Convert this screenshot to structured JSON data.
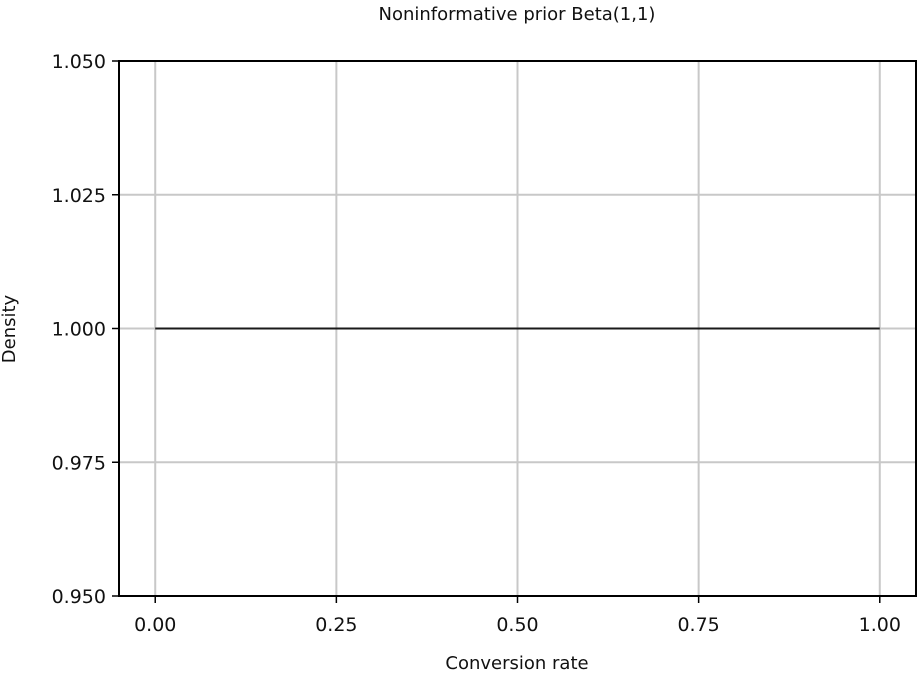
{
  "chart_data": {
    "type": "line",
    "title": "Noninformative prior Beta(1,1)",
    "xlabel": "Conversion rate",
    "ylabel": "Density",
    "xlim": [
      -0.05,
      1.05
    ],
    "ylim": [
      0.95,
      1.05
    ],
    "xticks": [
      "0.00",
      "0.25",
      "0.50",
      "0.75",
      "1.00"
    ],
    "yticks": [
      "0.950",
      "0.975",
      "1.000",
      "1.025",
      "1.050"
    ],
    "grid": true,
    "series": [
      {
        "x": [
          0.0,
          0.25,
          0.5,
          0.75,
          1.0
        ],
        "y": [
          1.0,
          1.0,
          1.0,
          1.0,
          1.0
        ]
      }
    ],
    "colors": {
      "line": "#1a1a1a",
      "grid": "#c8c8c8",
      "frame": "#000000"
    }
  }
}
